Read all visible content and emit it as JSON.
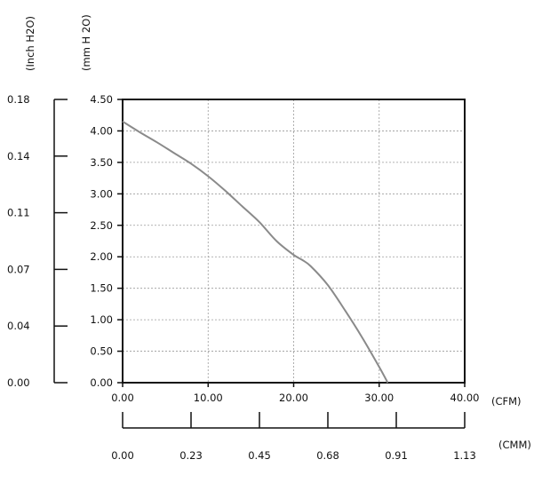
{
  "chart_data": {
    "type": "line",
    "x_units": "(CFM)",
    "x2_units": "(CMM)",
    "y_units": "(mm H 2O)",
    "y2_units": "(Inch H2O)",
    "xlim": [
      0,
      40
    ],
    "ylim": [
      0,
      4.5
    ],
    "grid": true,
    "x_ticks": [
      "0.00",
      "10.00",
      "20.00",
      "30.00",
      "40.00"
    ],
    "y_ticks": [
      "0.00",
      "0.50",
      "1.00",
      "1.50",
      "2.00",
      "2.50",
      "3.00",
      "3.50",
      "4.00",
      "4.50"
    ],
    "y2_ticks": [
      {
        "label": "0.00",
        "value": 0
      },
      {
        "label": "0.04",
        "value": 0.9
      },
      {
        "label": "0.07",
        "value": 1.8
      },
      {
        "label": "0.11",
        "value": 2.7
      },
      {
        "label": "0.14",
        "value": 3.6
      },
      {
        "label": "0.18",
        "value": 4.5
      }
    ],
    "x2_ticks": [
      {
        "label": "0.00",
        "value": 0
      },
      {
        "label": "0.23",
        "value": 8
      },
      {
        "label": "0.45",
        "value": 16
      },
      {
        "label": "0.68",
        "value": 24
      },
      {
        "label": "0.91",
        "value": 32
      },
      {
        "label": "1.13",
        "value": 40
      }
    ],
    "series": [
      {
        "color": "#8a8a8a",
        "x": [
          0,
          2,
          4,
          6,
          8,
          10,
          12,
          14,
          16,
          18,
          20,
          21,
          22,
          24,
          26,
          28,
          30,
          31
        ],
        "y": [
          4.15,
          3.98,
          3.82,
          3.65,
          3.48,
          3.28,
          3.05,
          2.8,
          2.55,
          2.25,
          2.03,
          1.95,
          1.85,
          1.55,
          1.15,
          0.72,
          0.25,
          0.0
        ]
      }
    ]
  }
}
